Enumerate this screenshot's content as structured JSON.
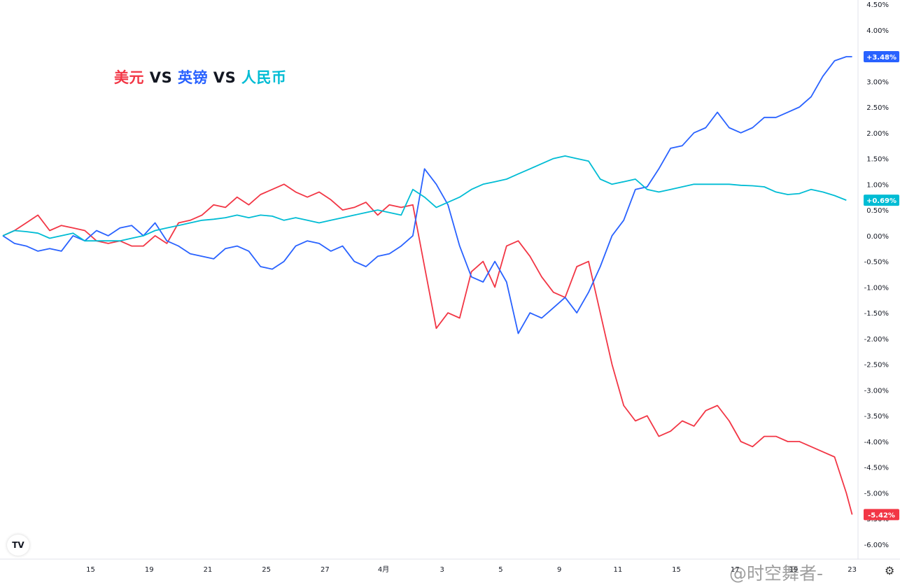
{
  "title": {
    "usd": "美元",
    "vs1": " VS ",
    "gbp": "英镑",
    "vs2": " VS ",
    "cny": "人民币"
  },
  "colors": {
    "usd": "#f23645",
    "gbp": "#2962ff",
    "cny": "#00bcd4",
    "axis_text": "#131722",
    "border": "#e0e3eb"
  },
  "logo_text": "TV",
  "watermark": "@时空舞者-",
  "settings_icon": "gear-icon",
  "chart_data": {
    "type": "line",
    "title": "美元 VS 英镑 VS 人民币",
    "xlabel": "",
    "ylabel": "",
    "ylim": [
      -6.0,
      4.5
    ],
    "y_tick_labels": [
      "4.50%",
      "4.00%",
      "3.50%",
      "3.00%",
      "2.50%",
      "2.00%",
      "1.50%",
      "1.00%",
      "0.50%",
      "0.00%",
      "-0.50%",
      "-1.00%",
      "-1.50%",
      "-2.00%",
      "-2.50%",
      "-3.00%",
      "-3.50%",
      "-4.00%",
      "-4.50%",
      "-5.00%",
      "-5.50%",
      "-6.00%"
    ],
    "y_tick_values": [
      4.5,
      4.0,
      3.5,
      3.0,
      2.5,
      2.0,
      1.5,
      1.0,
      0.5,
      0.0,
      -0.5,
      -1.0,
      -1.5,
      -2.0,
      -2.5,
      -3.0,
      -3.5,
      -4.0,
      -4.5,
      -5.0,
      -5.5,
      -6.0
    ],
    "x_tick_labels": [
      "15",
      "19",
      "21",
      "25",
      "27",
      "4月",
      "3",
      "5",
      "9",
      "11",
      "15",
      "17",
      "19",
      "23"
    ],
    "x_tick_positions": [
      1.5,
      2.5,
      3.5,
      4.5,
      5.5,
      6.5,
      7.5,
      8.5,
      9.5,
      10.5,
      11.5,
      12.5,
      13.5,
      14.5
    ],
    "x_range": [
      0,
      14.6
    ],
    "series": [
      {
        "key": "usd",
        "last_label": "-5.42%",
        "x": [
          0,
          0.2,
          0.4,
          0.6,
          0.8,
          1.0,
          1.2,
          1.4,
          1.6,
          1.8,
          2.0,
          2.2,
          2.4,
          2.6,
          2.8,
          3.0,
          3.2,
          3.4,
          3.6,
          3.8,
          4.0,
          4.2,
          4.4,
          4.6,
          4.8,
          5.0,
          5.2,
          5.4,
          5.6,
          5.8,
          6.0,
          6.2,
          6.4,
          6.6,
          6.8,
          7.0,
          7.2,
          7.4,
          7.6,
          7.8,
          8.0,
          8.2,
          8.4,
          8.6,
          8.8,
          9.0,
          9.2,
          9.4,
          9.6,
          9.8,
          10.0,
          10.2,
          10.4,
          10.6,
          10.8,
          11.0,
          11.2,
          11.4,
          11.6,
          11.8,
          12.0,
          12.2,
          12.4,
          12.6,
          12.8,
          13.0,
          13.2,
          13.4,
          13.6,
          13.8,
          14.0,
          14.2,
          14.4,
          14.5
        ],
        "values": [
          0.0,
          0.1,
          0.25,
          0.4,
          0.1,
          0.2,
          0.15,
          0.1,
          -0.1,
          -0.15,
          -0.1,
          -0.2,
          -0.2,
          0.0,
          -0.15,
          0.25,
          0.3,
          0.4,
          0.6,
          0.55,
          0.75,
          0.6,
          0.8,
          0.9,
          1.0,
          0.85,
          0.75,
          0.85,
          0.7,
          0.5,
          0.55,
          0.65,
          0.4,
          0.6,
          0.55,
          0.6,
          -0.6,
          -1.8,
          -1.5,
          -1.6,
          -0.7,
          -0.5,
          -1.0,
          -0.2,
          -0.1,
          -0.4,
          -0.8,
          -1.1,
          -1.2,
          -0.6,
          -0.5,
          -1.5,
          -2.5,
          -3.3,
          -3.6,
          -3.5,
          -3.9,
          -3.8,
          -3.6,
          -3.7,
          -3.4,
          -3.3,
          -3.6,
          -4.0,
          -4.1,
          -3.9,
          -3.9,
          -4.0,
          -4.0,
          -4.1,
          -4.2,
          -4.3,
          -5.0,
          -5.42
        ]
      },
      {
        "key": "gbp",
        "last_label": "+3.48%",
        "x": [
          0,
          0.2,
          0.4,
          0.6,
          0.8,
          1.0,
          1.2,
          1.4,
          1.6,
          1.8,
          2.0,
          2.2,
          2.4,
          2.6,
          2.8,
          3.0,
          3.2,
          3.4,
          3.6,
          3.8,
          4.0,
          4.2,
          4.4,
          4.6,
          4.8,
          5.0,
          5.2,
          5.4,
          5.6,
          5.8,
          6.0,
          6.2,
          6.4,
          6.6,
          6.8,
          7.0,
          7.2,
          7.4,
          7.6,
          7.8,
          8.0,
          8.2,
          8.4,
          8.6,
          8.8,
          9.0,
          9.2,
          9.4,
          9.6,
          9.8,
          10.0,
          10.2,
          10.4,
          10.6,
          10.8,
          11.0,
          11.2,
          11.4,
          11.6,
          11.8,
          12.0,
          12.2,
          12.4,
          12.6,
          12.8,
          13.0,
          13.2,
          13.4,
          13.6,
          13.8,
          14.0,
          14.2,
          14.4,
          14.5
        ],
        "values": [
          0.0,
          -0.15,
          -0.2,
          -0.3,
          -0.25,
          -0.3,
          0.0,
          -0.1,
          0.1,
          0.0,
          0.15,
          0.2,
          0.0,
          0.25,
          -0.1,
          -0.2,
          -0.35,
          -0.4,
          -0.45,
          -0.25,
          -0.2,
          -0.3,
          -0.6,
          -0.65,
          -0.5,
          -0.2,
          -0.1,
          -0.15,
          -0.3,
          -0.2,
          -0.5,
          -0.6,
          -0.4,
          -0.35,
          -0.2,
          0.0,
          1.3,
          1.0,
          0.6,
          -0.2,
          -0.8,
          -0.9,
          -0.5,
          -0.9,
          -1.9,
          -1.5,
          -1.6,
          -1.4,
          -1.2,
          -1.5,
          -1.1,
          -0.6,
          0.0,
          0.3,
          0.9,
          0.95,
          1.3,
          1.7,
          1.75,
          2.0,
          2.1,
          2.4,
          2.1,
          2.0,
          2.1,
          2.3,
          2.3,
          2.4,
          2.5,
          2.7,
          3.1,
          3.4,
          3.48,
          3.48
        ]
      },
      {
        "key": "cny",
        "last_label": "+0.69%",
        "x": [
          0,
          0.2,
          0.4,
          0.6,
          0.8,
          1.0,
          1.2,
          1.4,
          1.6,
          1.8,
          2.0,
          2.2,
          2.4,
          2.6,
          2.8,
          3.0,
          3.2,
          3.4,
          3.6,
          3.8,
          4.0,
          4.2,
          4.4,
          4.6,
          4.8,
          5.0,
          5.2,
          5.4,
          5.6,
          5.8,
          6.0,
          6.2,
          6.4,
          6.6,
          6.8,
          7.0,
          7.2,
          7.4,
          7.6,
          7.8,
          8.0,
          8.2,
          8.4,
          8.6,
          8.8,
          9.0,
          9.2,
          9.4,
          9.6,
          9.8,
          10.0,
          10.2,
          10.4,
          10.6,
          10.8,
          11.0,
          11.2,
          11.4,
          11.6,
          11.8,
          12.0,
          12.2,
          12.4,
          12.6,
          12.8,
          13.0,
          13.2,
          13.4,
          13.6,
          13.8,
          14.0,
          14.2,
          14.4
        ],
        "values": [
          0.0,
          0.1,
          0.08,
          0.05,
          -0.05,
          0.0,
          0.05,
          -0.1,
          -0.1,
          -0.1,
          -0.1,
          -0.05,
          0.0,
          0.1,
          0.15,
          0.2,
          0.25,
          0.3,
          0.32,
          0.35,
          0.4,
          0.35,
          0.4,
          0.38,
          0.3,
          0.35,
          0.3,
          0.25,
          0.3,
          0.35,
          0.4,
          0.45,
          0.5,
          0.45,
          0.4,
          0.9,
          0.75,
          0.55,
          0.65,
          0.75,
          0.9,
          1.0,
          1.05,
          1.1,
          1.2,
          1.3,
          1.4,
          1.5,
          1.55,
          1.5,
          1.45,
          1.1,
          1.0,
          1.05,
          1.1,
          0.9,
          0.85,
          0.9,
          0.95,
          1.0,
          1.0,
          1.0,
          1.0,
          0.98,
          0.97,
          0.95,
          0.85,
          0.8,
          0.82,
          0.9,
          0.85,
          0.78,
          0.69
        ]
      }
    ],
    "legend": "none",
    "grid": false
  }
}
